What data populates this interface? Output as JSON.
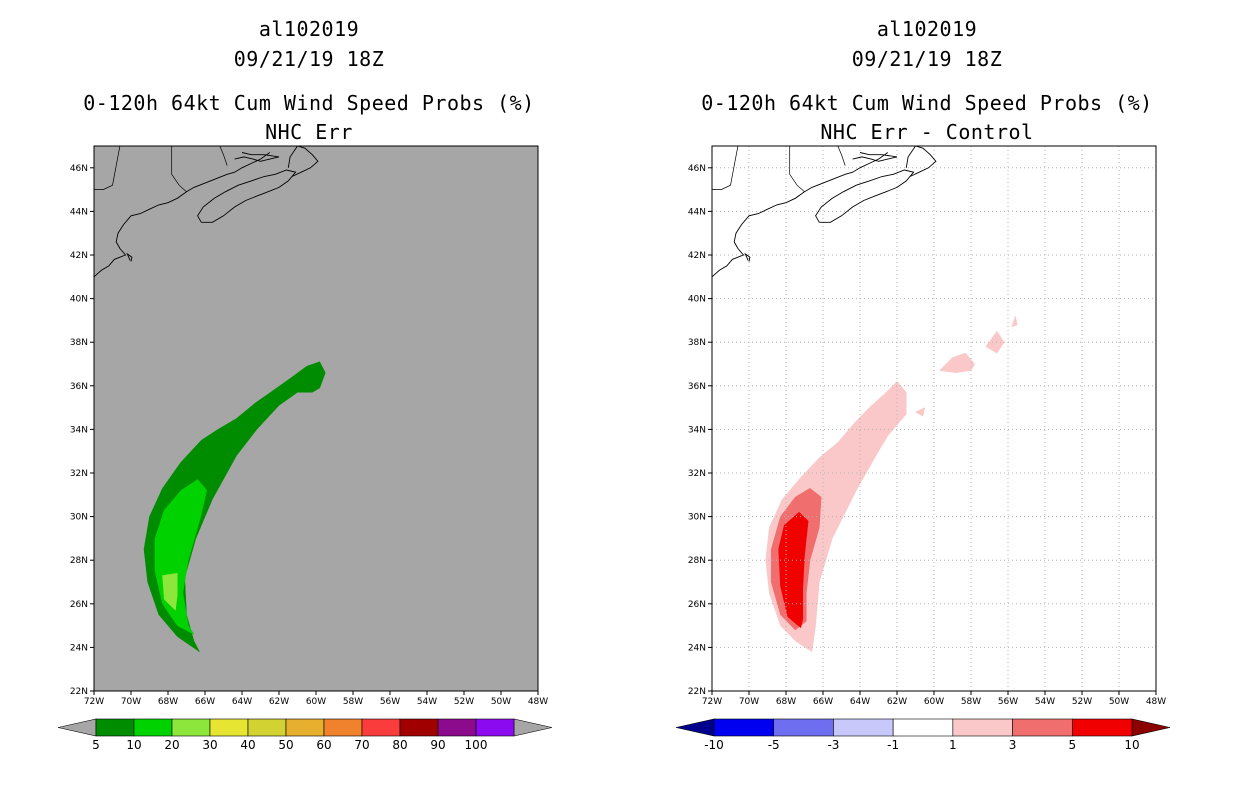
{
  "chart_data": [
    {
      "type": "heatmap",
      "title": [
        "al102019",
        "09/21/19 18Z",
        "0-120h 64kt Cum Wind Speed Probs (%)",
        "NHC Err"
      ],
      "x_ticks": [
        "72W",
        "70W",
        "68W",
        "66W",
        "64W",
        "62W",
        "60W",
        "58W",
        "56W",
        "54W",
        "52W",
        "50W",
        "48W"
      ],
      "y_ticks": [
        "22N",
        "24N",
        "26N",
        "28N",
        "30N",
        "32N",
        "34N",
        "36N",
        "38N",
        "40N",
        "42N",
        "44N",
        "46N"
      ],
      "xlim": [
        -72,
        -48
      ],
      "ylim": [
        22,
        47
      ],
      "grid": false,
      "background": "#a6a6a6",
      "colorbar": {
        "labels": [
          "5",
          "10",
          "20",
          "30",
          "40",
          "50",
          "60",
          "70",
          "80",
          "90",
          "100"
        ],
        "colors": [
          "#008c00",
          "#00d200",
          "#8ce63c",
          "#e6e632",
          "#d2d232",
          "#e6af2d",
          "#f0822d",
          "#fa3c3c",
          "#a00000",
          "#8c0a8c",
          "#8c0af0"
        ],
        "extend_colors": [
          "#a6a6a6",
          "#a6a6a6"
        ]
      },
      "contours": [
        {
          "level": "5-10",
          "color": "#008c00",
          "polygon": [
            [
              -66.3,
              23.8
            ],
            [
              -67.5,
              24.5
            ],
            [
              -68.5,
              25.5
            ],
            [
              -69.1,
              27
            ],
            [
              -69.3,
              28.5
            ],
            [
              -69.0,
              30
            ],
            [
              -68.3,
              31.3
            ],
            [
              -67.3,
              32.5
            ],
            [
              -66.2,
              33.5
            ],
            [
              -65.3,
              34
            ],
            [
              -64.3,
              34.5
            ],
            [
              -63.3,
              35.2
            ],
            [
              -62.3,
              35.8
            ],
            [
              -61.3,
              36.4
            ],
            [
              -60.5,
              36.9
            ],
            [
              -59.8,
              37.1
            ],
            [
              -59.5,
              36.6
            ],
            [
              -59.8,
              35.9
            ],
            [
              -60.2,
              35.7
            ],
            [
              -61.0,
              35.7
            ],
            [
              -62.0,
              35.1
            ],
            [
              -63.2,
              34
            ],
            [
              -64.3,
              32.8
            ],
            [
              -65.6,
              30.8
            ],
            [
              -66.5,
              29
            ],
            [
              -67.1,
              27.2
            ],
            [
              -67.0,
              25.5
            ],
            [
              -66.6,
              24.3
            ]
          ]
        },
        {
          "level": "10-20",
          "color": "#00d200",
          "polygon": [
            [
              -66.6,
              24.6
            ],
            [
              -67.5,
              25
            ],
            [
              -68.3,
              26
            ],
            [
              -68.7,
              27.5
            ],
            [
              -68.7,
              29
            ],
            [
              -68.2,
              30.3
            ],
            [
              -67.3,
              31.2
            ],
            [
              -66.4,
              31.7
            ],
            [
              -65.9,
              31.2
            ],
            [
              -66.3,
              29.8
            ],
            [
              -66.9,
              28
            ],
            [
              -67.2,
              26.5
            ],
            [
              -66.9,
              25
            ]
          ]
        },
        {
          "level": "20-30",
          "color": "#8ce63c",
          "polygon": [
            [
              -67.6,
              25.7
            ],
            [
              -68.2,
              26.2
            ],
            [
              -68.3,
              27.3
            ],
            [
              -67.5,
              27.4
            ],
            [
              -67.5,
              26.4
            ]
          ]
        }
      ]
    },
    {
      "type": "heatmap",
      "title": [
        "al102019",
        "09/21/19 18Z",
        "0-120h 64kt Cum Wind Speed Probs (%)",
        "NHC Err - Control"
      ],
      "x_ticks": [
        "72W",
        "70W",
        "68W",
        "66W",
        "64W",
        "62W",
        "60W",
        "58W",
        "56W",
        "54W",
        "52W",
        "50W",
        "48W"
      ],
      "y_ticks": [
        "22N",
        "24N",
        "26N",
        "28N",
        "30N",
        "32N",
        "34N",
        "36N",
        "38N",
        "40N",
        "42N",
        "44N",
        "46N"
      ],
      "xlim": [
        -72,
        -48
      ],
      "ylim": [
        22,
        47
      ],
      "grid": true,
      "background": "#ffffff",
      "colorbar": {
        "labels": [
          "-10",
          "-5",
          "-3",
          "-1",
          "1",
          "3",
          "5",
          "10"
        ],
        "colors": [
          "#0000f0",
          "#6e6ef0",
          "#c8c8fa",
          "#ffffff",
          "#fac8c8",
          "#f06e6e",
          "#f00000"
        ],
        "extend_colors": [
          "#00008c",
          "#8c0000"
        ]
      },
      "contours": [
        {
          "level": "1-3",
          "color": "#fac8c8",
          "polygon": [
            [
              -66.6,
              23.8
            ],
            [
              -67.5,
              24.3
            ],
            [
              -68.3,
              25
            ],
            [
              -68.9,
              26.5
            ],
            [
              -69.1,
              28
            ],
            [
              -68.9,
              29.5
            ],
            [
              -68.2,
              30.8
            ],
            [
              -67.2,
              31.8
            ],
            [
              -66.2,
              32.7
            ],
            [
              -65.2,
              33.4
            ],
            [
              -64.3,
              34.3
            ],
            [
              -63.5,
              35
            ],
            [
              -62.7,
              35.6
            ],
            [
              -62.0,
              36.2
            ],
            [
              -61.5,
              35.7
            ],
            [
              -61.5,
              34.7
            ],
            [
              -62.0,
              34.2
            ],
            [
              -62.5,
              33.7
            ],
            [
              -63.0,
              33.0
            ],
            [
              -64.2,
              31.2
            ],
            [
              -65.5,
              29
            ],
            [
              -66.2,
              27
            ],
            [
              -66.4,
              25
            ]
          ]
        },
        {
          "level": "1-3",
          "color": "#fac8c8",
          "polygon": [
            [
              -59.7,
              36.7
            ],
            [
              -59.0,
              37.3
            ],
            [
              -58.3,
              37.5
            ],
            [
              -57.8,
              37
            ],
            [
              -58.0,
              36.7
            ],
            [
              -58.8,
              36.6
            ]
          ]
        },
        {
          "level": "1-3",
          "color": "#fac8c8",
          "polygon": [
            [
              -57.2,
              37.8
            ],
            [
              -56.6,
              38.5
            ],
            [
              -56.2,
              38.0
            ],
            [
              -56.6,
              37.5
            ]
          ]
        },
        {
          "level": "1-3",
          "color": "#fac8c8",
          "polygon": [
            [
              -55.8,
              38.7
            ],
            [
              -55.6,
              39.2
            ],
            [
              -55.5,
              38.8
            ]
          ]
        },
        {
          "level": "1-3",
          "color": "#fac8c8",
          "polygon": [
            [
              -61.0,
              34.8
            ],
            [
              -60.5,
              35.0
            ],
            [
              -60.6,
              34.6
            ]
          ]
        },
        {
          "level": "3-5",
          "color": "#f06e6e",
          "polygon": [
            [
              -67.5,
              24.8
            ],
            [
              -68.3,
              25.5
            ],
            [
              -68.8,
              27
            ],
            [
              -68.8,
              28.5
            ],
            [
              -68.3,
              30
            ],
            [
              -67.5,
              30.9
            ],
            [
              -66.7,
              31.3
            ],
            [
              -66.1,
              30.9
            ],
            [
              -66.2,
              29.5
            ],
            [
              -66.7,
              28
            ],
            [
              -66.9,
              26.5
            ],
            [
              -66.9,
              25.2
            ]
          ]
        },
        {
          "level": "5-10",
          "color": "#f00000",
          "polygon": [
            [
              -67.2,
              24.9
            ],
            [
              -67.9,
              25.4
            ],
            [
              -68.3,
              26.8
            ],
            [
              -68.4,
              28.5
            ],
            [
              -68.1,
              29.6
            ],
            [
              -67.3,
              30.2
            ],
            [
              -66.8,
              29.8
            ],
            [
              -67.0,
              28.2
            ],
            [
              -67.1,
              26.6
            ],
            [
              -67.1,
              25.3
            ]
          ]
        }
      ]
    }
  ],
  "coastlines": [
    [
      [
        -72,
        41.0
      ],
      [
        -71.6,
        41.3
      ],
      [
        -71.2,
        41.5
      ],
      [
        -70.9,
        41.8
      ],
      [
        -70.6,
        41.9
      ],
      [
        -70.3,
        42.0
      ],
      [
        -70.6,
        42.3
      ],
      [
        -70.8,
        42.6
      ],
      [
        -70.7,
        43.0
      ],
      [
        -70.4,
        43.4
      ],
      [
        -70.0,
        43.8
      ],
      [
        -69.5,
        43.9
      ],
      [
        -69.0,
        44.1
      ],
      [
        -68.5,
        44.3
      ],
      [
        -68.0,
        44.4
      ],
      [
        -67.5,
        44.6
      ],
      [
        -67.0,
        44.9
      ],
      [
        -66.6,
        45.1
      ],
      [
        -66.0,
        45.3
      ],
      [
        -65.4,
        45.5
      ],
      [
        -64.8,
        45.7
      ],
      [
        -64.4,
        45.8
      ],
      [
        -64.0,
        46.0
      ],
      [
        -63.5,
        46.2
      ],
      [
        -63.0,
        46.4
      ],
      [
        -62.5,
        46.7
      ]
    ],
    [
      [
        -70.0,
        41.7
      ],
      [
        -69.95,
        41.9
      ],
      [
        -70.2,
        42.05
      ],
      [
        -70.05,
        41.75
      ]
    ],
    [
      [
        -66.2,
        43.5
      ],
      [
        -65.6,
        43.5
      ],
      [
        -65.0,
        43.8
      ],
      [
        -64.4,
        44.2
      ],
      [
        -63.8,
        44.5
      ],
      [
        -63.2,
        44.7
      ],
      [
        -62.6,
        44.9
      ],
      [
        -62.0,
        45.1
      ],
      [
        -61.5,
        45.4
      ],
      [
        -61.1,
        45.8
      ],
      [
        -61.6,
        45.9
      ],
      [
        -62.2,
        45.7
      ],
      [
        -62.8,
        45.6
      ],
      [
        -63.5,
        45.4
      ],
      [
        -64.2,
        45.2
      ],
      [
        -64.9,
        44.9
      ],
      [
        -65.5,
        44.6
      ],
      [
        -66.1,
        44.2
      ],
      [
        -66.4,
        43.8
      ],
      [
        -66.2,
        43.5
      ]
    ],
    [
      [
        -61.3,
        45.6
      ],
      [
        -60.8,
        45.8
      ],
      [
        -60.3,
        46.0
      ],
      [
        -59.9,
        46.3
      ],
      [
        -60.2,
        46.6
      ],
      [
        -60.6,
        46.9
      ],
      [
        -61.0,
        47.0
      ],
      [
        -61.4,
        46.5
      ],
      [
        -61.5,
        46.0
      ]
    ],
    [
      [
        -64.4,
        46.4
      ],
      [
        -63.9,
        46.5
      ],
      [
        -63.4,
        46.4
      ],
      [
        -63.0,
        46.3
      ],
      [
        -62.5,
        46.4
      ],
      [
        -62.0,
        46.5
      ],
      [
        -62.8,
        46.6
      ],
      [
        -63.5,
        46.6
      ],
      [
        -64.0,
        46.7
      ]
    ]
  ],
  "borders": [
    [
      [
        -67.8,
        47.0
      ],
      [
        -67.8,
        45.7
      ],
      [
        -67.4,
        45.2
      ],
      [
        -67.0,
        44.9
      ]
    ],
    [
      [
        -70.6,
        47.0
      ],
      [
        -71.0,
        45.2
      ],
      [
        -71.5,
        45.0
      ],
      [
        -72,
        45.0
      ]
    ],
    [
      [
        -65.2,
        47.0
      ],
      [
        -65.0,
        46.6
      ],
      [
        -64.8,
        46.1
      ]
    ]
  ]
}
